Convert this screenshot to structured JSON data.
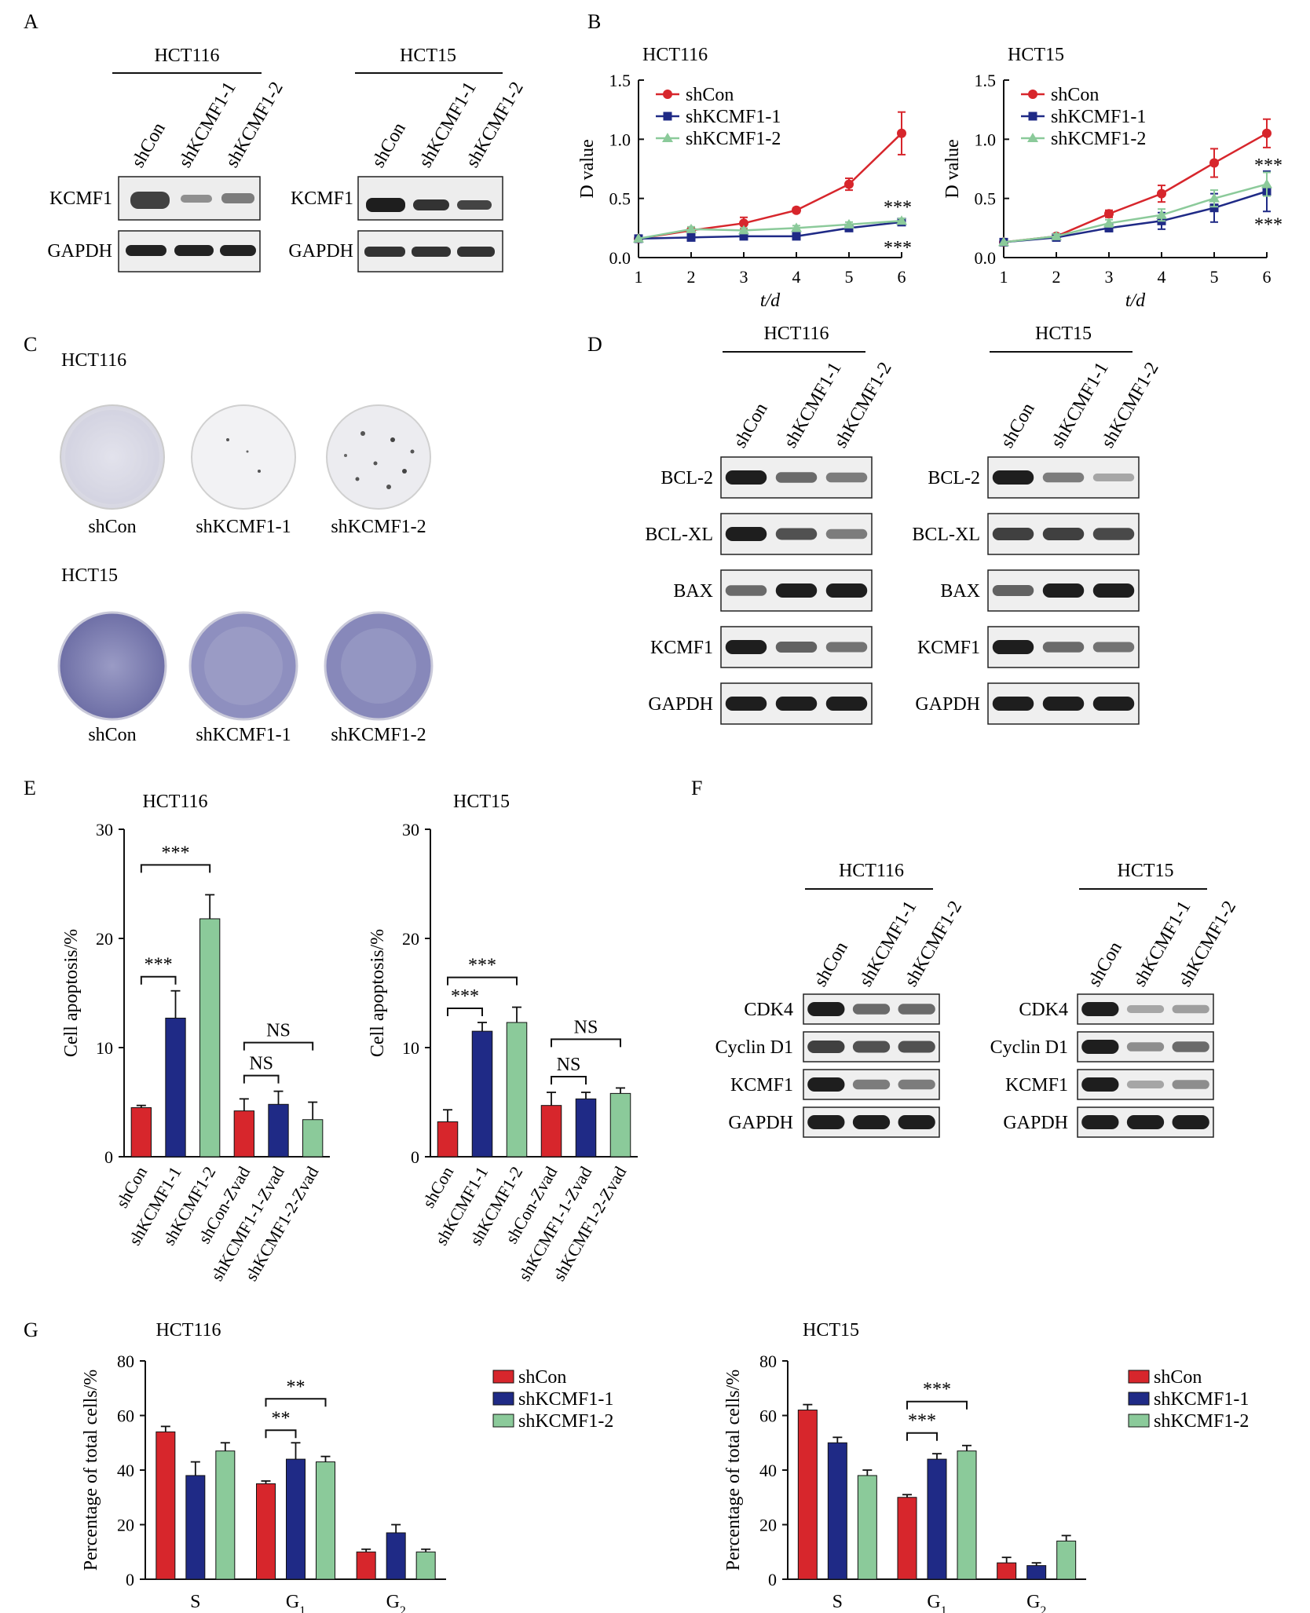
{
  "colors": {
    "red": "#d7262c",
    "blue": "#1f2a86",
    "green": "#8bca9a"
  },
  "panelA": {
    "letter": "A",
    "groups": [
      {
        "title": "HCT116",
        "lanes": [
          "shCon",
          "shKCMF1-1",
          "shKCMF1-2"
        ],
        "bands": [
          "KCMF1",
          "GAPDH"
        ]
      },
      {
        "title": "HCT15",
        "lanes": [
          "shCon",
          "shKCMF1-1",
          "shKCMF1-2"
        ],
        "bands": [
          "KCMF1",
          "GAPDH"
        ]
      }
    ]
  },
  "panelB": {
    "letter": "B"
  },
  "panelC": {
    "letter": "C",
    "groups": [
      {
        "title": "HCT116",
        "labels": [
          "shCon",
          "shKCMF1-1",
          "shKCMF1-2"
        ]
      },
      {
        "title": "HCT15",
        "labels": [
          "shCon",
          "shKCMF1-1",
          "shKCMF1-2"
        ]
      }
    ]
  },
  "panelD": {
    "letter": "D",
    "groups": [
      {
        "title": "HCT116",
        "lanes": [
          "shCon",
          "shKCMF1-1",
          "shKCMF1-2"
        ],
        "bands": [
          "BCL-2",
          "BCL-XL",
          "BAX",
          "KCMF1",
          "GAPDH"
        ]
      },
      {
        "title": "HCT15",
        "lanes": [
          "shCon",
          "shKCMF1-1",
          "shKCMF1-2"
        ],
        "bands": [
          "BCL-2",
          "BCL-XL",
          "BAX",
          "KCMF1",
          "GAPDH"
        ]
      }
    ]
  },
  "panelE": {
    "letter": "E"
  },
  "panelF": {
    "letter": "F",
    "groups": [
      {
        "title": "HCT116",
        "lanes": [
          "shCon",
          "shKCMF1-1",
          "shKCMF1-2"
        ],
        "bands": [
          "CDK4",
          "Cyclin D1",
          "KCMF1",
          "GAPDH"
        ]
      },
      {
        "title": "HCT15",
        "lanes": [
          "shCon",
          "shKCMF1-1",
          "shKCMF1-2"
        ],
        "bands": [
          "CDK4",
          "Cyclin D1",
          "KCMF1",
          "GAPDH"
        ]
      }
    ]
  },
  "panelG": {
    "letter": "G"
  },
  "chart_data": [
    {
      "id": "B-HCT116",
      "type": "line",
      "title": "HCT116",
      "xlabel": "t/d",
      "ylabel": "D value",
      "x": [
        1,
        2,
        3,
        4,
        5,
        6
      ],
      "xlim": [
        1,
        6
      ],
      "ylim": [
        0,
        1.5
      ],
      "yticks": [
        "0.0",
        "0.5",
        "1.0",
        "1.5"
      ],
      "legend": "top-left",
      "series": [
        {
          "name": "shCon",
          "values": [
            0.16,
            0.23,
            0.29,
            0.4,
            0.62,
            1.05
          ],
          "errors": [
            0.01,
            0.02,
            0.05,
            0.02,
            0.05,
            0.18
          ]
        },
        {
          "name": "shKCMF1-1",
          "values": [
            0.16,
            0.17,
            0.18,
            0.18,
            0.25,
            0.3
          ],
          "errors": [
            0.01,
            0.01,
            0.01,
            0.01,
            0.02,
            0.02
          ]
        },
        {
          "name": "shKCMF1-2",
          "values": [
            0.16,
            0.24,
            0.23,
            0.25,
            0.28,
            0.31
          ],
          "errors": [
            0.01,
            0.02,
            0.02,
            0.02,
            0.02,
            0.02
          ]
        }
      ],
      "annotations": [
        "***",
        "***"
      ]
    },
    {
      "id": "B-HCT15",
      "type": "line",
      "title": "HCT15",
      "xlabel": "t/d",
      "ylabel": "D value",
      "x": [
        1,
        2,
        3,
        4,
        5,
        6
      ],
      "xlim": [
        1,
        6
      ],
      "ylim": [
        0,
        1.5
      ],
      "yticks": [
        "0.0",
        "0.5",
        "1.0",
        "1.5"
      ],
      "legend": "top-left",
      "series": [
        {
          "name": "shCon",
          "values": [
            0.13,
            0.18,
            0.37,
            0.54,
            0.8,
            1.05
          ],
          "errors": [
            0.01,
            0.02,
            0.03,
            0.07,
            0.12,
            0.12
          ]
        },
        {
          "name": "shKCMF1-1",
          "values": [
            0.13,
            0.17,
            0.25,
            0.31,
            0.42,
            0.56
          ],
          "errors": [
            0.01,
            0.02,
            0.03,
            0.07,
            0.12,
            0.17
          ]
        },
        {
          "name": "shKCMF1-2",
          "values": [
            0.13,
            0.18,
            0.29,
            0.36,
            0.5,
            0.62
          ],
          "errors": [
            0.01,
            0.02,
            0.03,
            0.05,
            0.07,
            0.1
          ]
        }
      ],
      "annotations": [
        "***",
        "***"
      ]
    },
    {
      "id": "E-HCT116",
      "type": "bar",
      "title": "HCT116",
      "ylabel": "Cell apoptosis/%",
      "ylim": [
        0,
        30
      ],
      "yticks": [
        0,
        10,
        20,
        30
      ],
      "categories": [
        "shCon",
        "shKCMF1-1",
        "shKCMF1-2",
        "shCon-Zvad",
        "shKCMF1-1-Zvad",
        "shKCMF1-2-Zvad"
      ],
      "values": [
        4.5,
        12.7,
        21.8,
        4.2,
        4.8,
        3.4
      ],
      "errors": [
        0.2,
        2.5,
        2.2,
        1.1,
        1.2,
        1.6
      ],
      "colors": [
        "red",
        "blue",
        "green",
        "red",
        "blue",
        "green"
      ],
      "significance": [
        {
          "from": 0,
          "to": 1,
          "label": "***"
        },
        {
          "from": 0,
          "to": 2,
          "label": "***"
        },
        {
          "from": 3,
          "to": 4,
          "label": "NS"
        },
        {
          "from": 3,
          "to": 5,
          "label": "NS"
        }
      ]
    },
    {
      "id": "E-HCT15",
      "type": "bar",
      "title": "HCT15",
      "ylabel": "Cell apoptosis/%",
      "ylim": [
        0,
        30
      ],
      "yticks": [
        0,
        10,
        20,
        30
      ],
      "categories": [
        "shCon",
        "shKCMF1-1",
        "shKCMF1-2",
        "shCon-Zvad",
        "shKCMF1-1-Zvad",
        "shKCMF1-2-Zvad"
      ],
      "values": [
        3.2,
        11.5,
        12.3,
        4.7,
        5.3,
        5.8
      ],
      "errors": [
        1.1,
        0.8,
        1.4,
        1.2,
        0.6,
        0.5
      ],
      "colors": [
        "red",
        "blue",
        "green",
        "red",
        "blue",
        "green"
      ],
      "significance": [
        {
          "from": 0,
          "to": 1,
          "label": "***"
        },
        {
          "from": 0,
          "to": 2,
          "label": "***"
        },
        {
          "from": 3,
          "to": 4,
          "label": "NS"
        },
        {
          "from": 3,
          "to": 5,
          "label": "NS"
        }
      ]
    },
    {
      "id": "G-HCT116",
      "type": "bar",
      "title": "HCT116",
      "ylabel": "Percentage of total cells/%",
      "ylim": [
        0,
        80
      ],
      "yticks": [
        0,
        20,
        40,
        60,
        80
      ],
      "categories": [
        "S",
        "G1",
        "G2"
      ],
      "legend": "right",
      "series": [
        {
          "name": "shCon",
          "values": [
            54,
            35,
            10
          ],
          "errors": [
            2,
            1,
            1
          ]
        },
        {
          "name": "shKCMF1-1",
          "values": [
            38,
            44,
            17
          ],
          "errors": [
            5,
            6,
            3
          ]
        },
        {
          "name": "shKCMF1-2",
          "values": [
            47,
            43,
            10
          ],
          "errors": [
            3,
            2,
            1
          ]
        }
      ],
      "significance": [
        {
          "group": 1,
          "from": 0,
          "to": 1,
          "label": "**"
        },
        {
          "group": 1,
          "from": 0,
          "to": 2,
          "label": "**"
        }
      ]
    },
    {
      "id": "G-HCT15",
      "type": "bar",
      "title": "HCT15",
      "ylabel": "Percentage of total cells/%",
      "ylim": [
        0,
        80
      ],
      "yticks": [
        0,
        20,
        40,
        60,
        80
      ],
      "categories": [
        "S",
        "G1",
        "G2"
      ],
      "legend": "right",
      "series": [
        {
          "name": "shCon",
          "values": [
            62,
            30,
            6
          ],
          "errors": [
            2,
            1,
            2
          ]
        },
        {
          "name": "shKCMF1-1",
          "values": [
            50,
            44,
            5
          ],
          "errors": [
            2,
            2,
            1
          ]
        },
        {
          "name": "shKCMF1-2",
          "values": [
            38,
            47,
            14
          ],
          "errors": [
            2,
            2,
            2
          ]
        }
      ],
      "significance": [
        {
          "group": 1,
          "from": 0,
          "to": 1,
          "label": "***"
        },
        {
          "group": 1,
          "from": 0,
          "to": 2,
          "label": "***"
        }
      ]
    }
  ]
}
